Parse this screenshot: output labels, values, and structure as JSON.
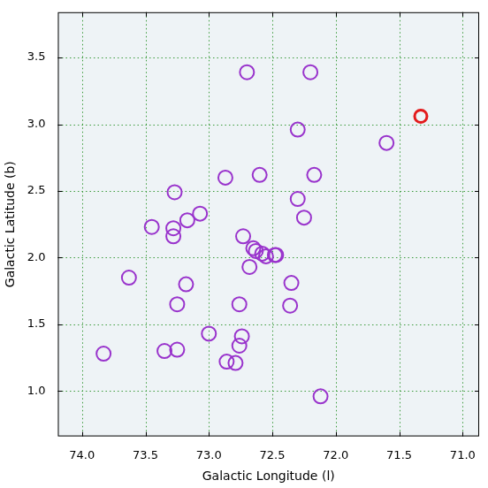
{
  "chart_data": {
    "type": "scatter",
    "xlabel": "Galactic Longitude (l)",
    "ylabel": "Galactic Latitude (b)",
    "xlim": [
      74.19,
      70.87
    ],
    "ylim": [
      0.66,
      3.84
    ],
    "xticks": [
      {
        "value": 74,
        "label": "74.0"
      },
      {
        "value": 73.5,
        "label": "73.5"
      },
      {
        "value": 73,
        "label": "73.0"
      },
      {
        "value": 72.5,
        "label": "72.5"
      },
      {
        "value": 72,
        "label": "72.0"
      },
      {
        "value": 71.5,
        "label": "71.5"
      },
      {
        "value": 71,
        "label": "71.0"
      }
    ],
    "yticks": [
      {
        "value": 1,
        "label": "1.0"
      },
      {
        "value": 1.5,
        "label": "1.5"
      },
      {
        "value": 2,
        "label": "2.0"
      },
      {
        "value": 2.5,
        "label": "2.5"
      },
      {
        "value": 3,
        "label": "3.0"
      },
      {
        "value": 3.5,
        "label": "3.5"
      }
    ],
    "grid": true,
    "series": [
      {
        "color": "#9933cc",
        "marker": "circle",
        "x": [
          72.7,
          72.2,
          72.3,
          71.6,
          72.87,
          72.6,
          72.17,
          73.27,
          72.3,
          73.07,
          72.25,
          73.17,
          73.45,
          73.28,
          73.28,
          72.73,
          72.65,
          72.63,
          72.58,
          72.55,
          72.48,
          72.47,
          72.68,
          73.63,
          72.35,
          73.18,
          73.25,
          72.76,
          72.36,
          73.0,
          72.74,
          72.76,
          73.83,
          73.35,
          73.25,
          72.86,
          72.79,
          72.12
        ],
        "y": [
          3.39,
          3.39,
          2.96,
          2.86,
          2.6,
          2.62,
          2.62,
          2.49,
          2.44,
          2.33,
          2.3,
          2.28,
          2.23,
          2.22,
          2.16,
          2.16,
          2.07,
          2.05,
          2.03,
          2.01,
          2.02,
          2.02,
          1.93,
          1.85,
          1.81,
          1.8,
          1.65,
          1.65,
          1.64,
          1.43,
          1.41,
          1.34,
          1.28,
          1.3,
          1.31,
          1.22,
          1.21,
          0.96
        ]
      },
      {
        "color": "#e31a1c",
        "marker": "circle",
        "x": [
          71.33
        ],
        "y": [
          3.06
        ]
      }
    ]
  }
}
